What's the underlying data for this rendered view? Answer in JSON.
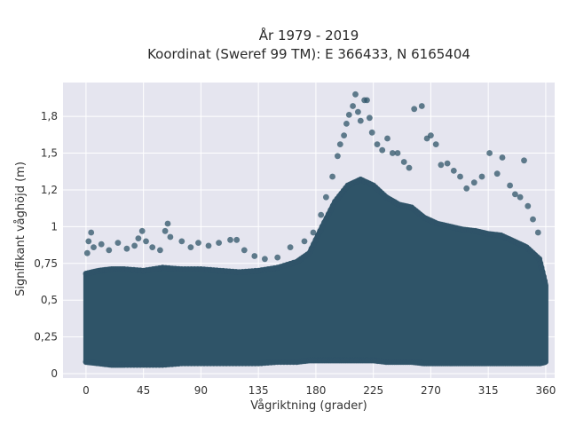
{
  "chart_data": {
    "type": "scatter",
    "title_line1": "År 1979 - 2019",
    "title_line2": "Koordinat (Sweref 99 TM): E 366433, N 6165404",
    "xlabel": "Vågriktning (grader)",
    "ylabel": "Signifikant våghöjd (m)",
    "xlim": [
      -18,
      367
    ],
    "ylim": [
      -0.03,
      1.98
    ],
    "x_ticks": [
      0,
      45,
      90,
      135,
      180,
      225,
      270,
      315,
      360
    ],
    "x_tick_labels": [
      "0",
      "45",
      "90",
      "135",
      "180",
      "225",
      "270",
      "315",
      "360"
    ],
    "y_ticks": [
      0,
      0.25,
      0.5,
      0.75,
      1,
      1.25,
      1.5,
      1.75
    ],
    "y_tick_labels": [
      "0",
      "0,25",
      "0,5",
      "0,75",
      "1",
      "1,2",
      "1,5",
      "1,8"
    ],
    "colors": {
      "marker": "#2f5468",
      "plot_bg": "#e5e5ef",
      "grid": "#ffffff"
    },
    "grid": true,
    "envelope": {
      "direction": [
        0,
        10,
        20,
        30,
        45,
        60,
        75,
        90,
        105,
        120,
        135,
        150,
        165,
        175,
        185,
        195,
        205,
        215,
        225,
        235,
        245,
        255,
        265,
        275,
        285,
        295,
        305,
        315,
        325,
        335,
        345,
        355,
        360
      ],
      "lower_height": [
        0.08,
        0.07,
        0.06,
        0.06,
        0.06,
        0.06,
        0.07,
        0.07,
        0.07,
        0.07,
        0.07,
        0.08,
        0.08,
        0.09,
        0.09,
        0.09,
        0.09,
        0.09,
        0.09,
        0.08,
        0.08,
        0.08,
        0.07,
        0.07,
        0.07,
        0.07,
        0.07,
        0.07,
        0.07,
        0.07,
        0.07,
        0.07,
        0.08
      ],
      "upper_height": [
        0.68,
        0.7,
        0.71,
        0.71,
        0.7,
        0.72,
        0.71,
        0.71,
        0.7,
        0.69,
        0.7,
        0.72,
        0.76,
        0.82,
        1.0,
        1.17,
        1.28,
        1.32,
        1.28,
        1.2,
        1.15,
        1.13,
        1.06,
        1.02,
        1.0,
        0.98,
        0.97,
        0.95,
        0.94,
        0.9,
        0.86,
        0.78,
        0.6
      ]
    },
    "outliers": [
      {
        "x": 1,
        "y": 0.82
      },
      {
        "x": 2,
        "y": 0.9
      },
      {
        "x": 4,
        "y": 0.96
      },
      {
        "x": 6,
        "y": 0.86
      },
      {
        "x": 12,
        "y": 0.88
      },
      {
        "x": 18,
        "y": 0.84
      },
      {
        "x": 25,
        "y": 0.89
      },
      {
        "x": 32,
        "y": 0.85
      },
      {
        "x": 38,
        "y": 0.87
      },
      {
        "x": 41,
        "y": 0.92
      },
      {
        "x": 44,
        "y": 0.97
      },
      {
        "x": 47,
        "y": 0.9
      },
      {
        "x": 52,
        "y": 0.86
      },
      {
        "x": 58,
        "y": 0.84
      },
      {
        "x": 62,
        "y": 0.97
      },
      {
        "x": 64,
        "y": 1.02
      },
      {
        "x": 66,
        "y": 0.93
      },
      {
        "x": 75,
        "y": 0.9
      },
      {
        "x": 82,
        "y": 0.86
      },
      {
        "x": 88,
        "y": 0.89
      },
      {
        "x": 96,
        "y": 0.87
      },
      {
        "x": 104,
        "y": 0.89
      },
      {
        "x": 113,
        "y": 0.91
      },
      {
        "x": 118,
        "y": 0.91
      },
      {
        "x": 124,
        "y": 0.84
      },
      {
        "x": 132,
        "y": 0.8
      },
      {
        "x": 140,
        "y": 0.78
      },
      {
        "x": 150,
        "y": 0.79
      },
      {
        "x": 160,
        "y": 0.86
      },
      {
        "x": 171,
        "y": 0.9
      },
      {
        "x": 178,
        "y": 0.96
      },
      {
        "x": 184,
        "y": 1.08
      },
      {
        "x": 188,
        "y": 1.2
      },
      {
        "x": 193,
        "y": 1.34
      },
      {
        "x": 197,
        "y": 1.48
      },
      {
        "x": 199,
        "y": 1.56
      },
      {
        "x": 202,
        "y": 1.62
      },
      {
        "x": 204,
        "y": 1.7
      },
      {
        "x": 206,
        "y": 1.76
      },
      {
        "x": 209,
        "y": 1.82
      },
      {
        "x": 211,
        "y": 1.9
      },
      {
        "x": 213,
        "y": 1.78
      },
      {
        "x": 215,
        "y": 1.72
      },
      {
        "x": 218,
        "y": 1.86
      },
      {
        "x": 220,
        "y": 1.86
      },
      {
        "x": 222,
        "y": 1.74
      },
      {
        "x": 224,
        "y": 1.64
      },
      {
        "x": 228,
        "y": 1.56
      },
      {
        "x": 232,
        "y": 1.52
      },
      {
        "x": 236,
        "y": 1.6
      },
      {
        "x": 240,
        "y": 1.5
      },
      {
        "x": 244,
        "y": 1.5
      },
      {
        "x": 249,
        "y": 1.44
      },
      {
        "x": 253,
        "y": 1.4
      },
      {
        "x": 257,
        "y": 1.8
      },
      {
        "x": 263,
        "y": 1.82
      },
      {
        "x": 267,
        "y": 1.6
      },
      {
        "x": 270,
        "y": 1.62
      },
      {
        "x": 274,
        "y": 1.56
      },
      {
        "x": 278,
        "y": 1.42
      },
      {
        "x": 283,
        "y": 1.43
      },
      {
        "x": 288,
        "y": 1.38
      },
      {
        "x": 293,
        "y": 1.34
      },
      {
        "x": 298,
        "y": 1.26
      },
      {
        "x": 304,
        "y": 1.3
      },
      {
        "x": 310,
        "y": 1.34
      },
      {
        "x": 316,
        "y": 1.5
      },
      {
        "x": 322,
        "y": 1.36
      },
      {
        "x": 326,
        "y": 1.47
      },
      {
        "x": 332,
        "y": 1.28
      },
      {
        "x": 336,
        "y": 1.22
      },
      {
        "x": 340,
        "y": 1.2
      },
      {
        "x": 343,
        "y": 1.45
      },
      {
        "x": 346,
        "y": 1.14
      },
      {
        "x": 350,
        "y": 1.05
      },
      {
        "x": 354,
        "y": 0.96
      }
    ]
  }
}
